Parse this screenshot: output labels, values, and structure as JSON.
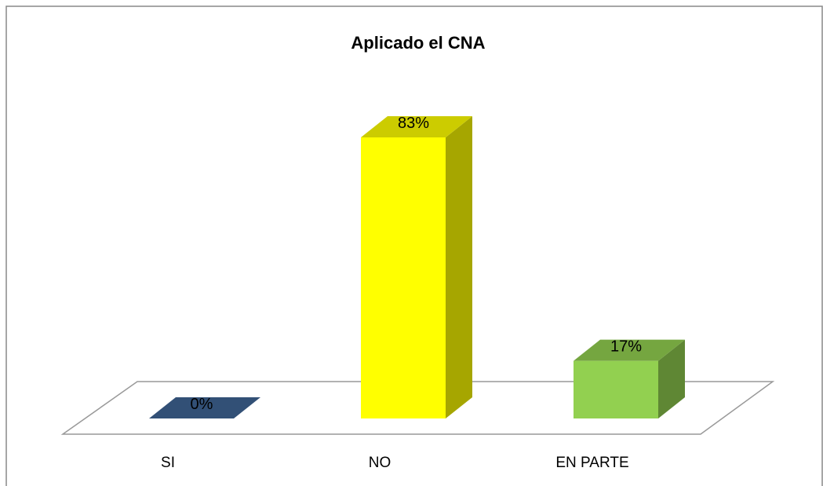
{
  "chart_data": {
    "type": "bar3d",
    "title": "Aplicado el CNA",
    "categories": [
      "SI",
      "NO",
      "EN PARTE"
    ],
    "values": [
      0,
      83,
      17
    ],
    "value_labels": [
      "0%",
      "83%",
      "17%"
    ],
    "colors": [
      "#3e6494",
      "#ffff00",
      "#92d050"
    ]
  }
}
